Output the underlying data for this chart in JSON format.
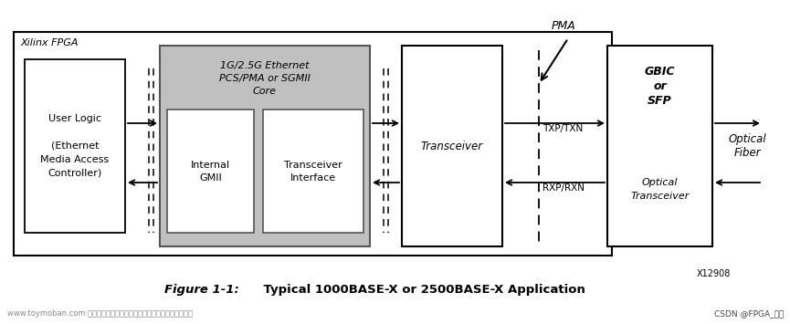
{
  "bg_color": "#ffffff",
  "fig_width": 8.65,
  "fig_height": 3.55,
  "caption_italic": "Figure 1-1:",
  "caption_bold": "    Typical 1000BASE-X or 2500BASE-X Application",
  "watermark_left": "www.toymoban.com 网络图片仅供展示，非存储，如有侵权请联系删除。",
  "watermark_right": "CSDN @FPGA_青年",
  "x12908": "X12908",
  "fpga_label": "Xilinx FPGA",
  "user_logic_lines": [
    "User Logic",
    "",
    "(Ethernet",
    "Media Access",
    "Controller)"
  ],
  "pcs_lines": [
    "1G/2.5G Ethernet",
    "PCS/PMA or SGMII",
    "Core"
  ],
  "internal_gmii_lines": [
    "Internal",
    "GMII"
  ],
  "transceiver_interface_lines": [
    "Transceiver",
    "Interface"
  ],
  "transceiver_lines": [
    "Transceiver"
  ],
  "gbic_lines": [
    "GBIC",
    "or",
    "SFP"
  ],
  "optical_transceiver_lines": [
    "Optical",
    "Transceiver"
  ],
  "optical_fiber_lines": [
    "Optical",
    "Fiber"
  ],
  "txp_txn": "TXP/TXN",
  "rxp_rxn": "RXP/RXN",
  "pma_label": "PMA"
}
